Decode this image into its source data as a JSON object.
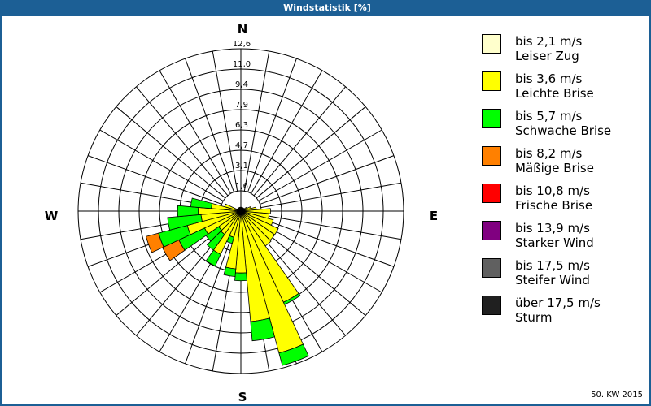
{
  "window": {
    "title": "Windstatistik [%]"
  },
  "footer": {
    "period": "50. KW 2015"
  },
  "directions": {
    "north": "N",
    "east": "E",
    "south": "S",
    "west": "W"
  },
  "legend": [
    {
      "range": "bis 2,1 m/s",
      "name": "Leiser Zug",
      "color": "#ffffcc"
    },
    {
      "range": "bis 3,6 m/s",
      "name": "Leichte Brise",
      "color": "#ffff00"
    },
    {
      "range": "bis 5,7 m/s",
      "name": "Schwache Brise",
      "color": "#00ff00"
    },
    {
      "range": "bis 8,2 m/s",
      "name": "Mäßige Brise",
      "color": "#ff8000"
    },
    {
      "range": "bis 10,8 m/s",
      "name": "Frische Brise",
      "color": "#ff0000"
    },
    {
      "range": "bis 13,9 m/s",
      "name": "Starker Wind",
      "color": "#800080"
    },
    {
      "range": "bis 17,5 m/s",
      "name": "Steifer Wind",
      "color": "#606060"
    },
    {
      "range": "über 17,5 m/s",
      "name": "Sturm",
      "color": "#202020"
    }
  ],
  "chart_data": {
    "type": "wind-rose",
    "title": "Windstatistik [%]",
    "subtitle": "50. KW 2015",
    "radial_axis": {
      "unit": "%",
      "ticks": [
        "1,6",
        "3,1",
        "4,7",
        "6,3",
        "7,9",
        "9,4",
        "11,0",
        "12,6"
      ],
      "max": 12.6
    },
    "sector_width_deg": 10,
    "series_names": [
      "Leiser Zug",
      "Leichte Brise",
      "Schwache Brise",
      "Mäßige Brise"
    ],
    "sectors": [
      {
        "dir": 0,
        "values": [
          0.3,
          0.0,
          0.0,
          0.0
        ]
      },
      {
        "dir": 10,
        "values": [
          0.3,
          0.0,
          0.0,
          0.0
        ]
      },
      {
        "dir": 20,
        "values": [
          0.3,
          0.0,
          0.0,
          0.0
        ]
      },
      {
        "dir": 30,
        "values": [
          0.3,
          0.0,
          0.0,
          0.0
        ]
      },
      {
        "dir": 40,
        "values": [
          0.3,
          0.0,
          0.0,
          0.0
        ]
      },
      {
        "dir": 50,
        "values": [
          0.3,
          0.0,
          0.0,
          0.0
        ]
      },
      {
        "dir": 60,
        "values": [
          0.3,
          0.2,
          0.0,
          0.0
        ]
      },
      {
        "dir": 70,
        "values": [
          0.3,
          0.5,
          0.0,
          0.0
        ]
      },
      {
        "dir": 80,
        "values": [
          0.3,
          0.9,
          0.0,
          0.0
        ]
      },
      {
        "dir": 90,
        "values": [
          0.3,
          2.0,
          0.0,
          0.0
        ]
      },
      {
        "dir": 100,
        "values": [
          0.3,
          1.9,
          0.0,
          0.0
        ]
      },
      {
        "dir": 110,
        "values": [
          0.3,
          2.3,
          0.0,
          0.0
        ]
      },
      {
        "dir": 120,
        "values": [
          0.3,
          2.9,
          0.0,
          0.0
        ]
      },
      {
        "dir": 130,
        "values": [
          0.3,
          2.9,
          0.0,
          0.0
        ]
      },
      {
        "dir": 140,
        "values": [
          0.3,
          3.0,
          0.0,
          0.0
        ]
      },
      {
        "dir": 150,
        "values": [
          0.3,
          7.5,
          0.2,
          0.0
        ]
      },
      {
        "dir": 160,
        "values": [
          0.3,
          11.1,
          1.0,
          0.0
        ]
      },
      {
        "dir": 170,
        "values": [
          0.3,
          8.3,
          1.5,
          0.0
        ]
      },
      {
        "dir": 180,
        "values": [
          0.3,
          4.5,
          0.6,
          0.0
        ]
      },
      {
        "dir": 190,
        "values": [
          0.3,
          4.2,
          0.6,
          0.0
        ]
      },
      {
        "dir": 200,
        "values": [
          0.3,
          1.8,
          0.5,
          0.0
        ]
      },
      {
        "dir": 210,
        "values": [
          0.3,
          3.4,
          1.0,
          0.0
        ]
      },
      {
        "dir": 220,
        "values": [
          0.3,
          1.9,
          1.5,
          0.0
        ]
      },
      {
        "dir": 230,
        "values": [
          0.3,
          1.8,
          1.2,
          0.0
        ]
      },
      {
        "dir": 240,
        "values": [
          0.3,
          2.8,
          2.2,
          1.4
        ]
      },
      {
        "dir": 250,
        "values": [
          0.3,
          4.0,
          2.3,
          1.0
        ]
      },
      {
        "dir": 260,
        "values": [
          0.3,
          2.8,
          2.6,
          0.0
        ]
      },
      {
        "dir": 270,
        "values": [
          0.3,
          3.0,
          1.6,
          0.0
        ]
      },
      {
        "dir": 280,
        "values": [
          0.3,
          2.0,
          1.6,
          0.0
        ]
      },
      {
        "dir": 290,
        "values": [
          0.3,
          1.0,
          0.0,
          0.0
        ]
      },
      {
        "dir": 300,
        "values": [
          0.3,
          0.0,
          0.0,
          0.0
        ]
      },
      {
        "dir": 310,
        "values": [
          0.3,
          0.0,
          0.0,
          0.0
        ]
      },
      {
        "dir": 320,
        "values": [
          0.3,
          0.0,
          0.0,
          0.0
        ]
      },
      {
        "dir": 330,
        "values": [
          0.3,
          0.0,
          0.0,
          0.0
        ]
      },
      {
        "dir": 340,
        "values": [
          0.3,
          0.0,
          0.0,
          0.0
        ]
      },
      {
        "dir": 350,
        "values": [
          0.3,
          0.0,
          0.0,
          0.0
        ]
      }
    ],
    "grid": true,
    "legend_position": "right"
  }
}
